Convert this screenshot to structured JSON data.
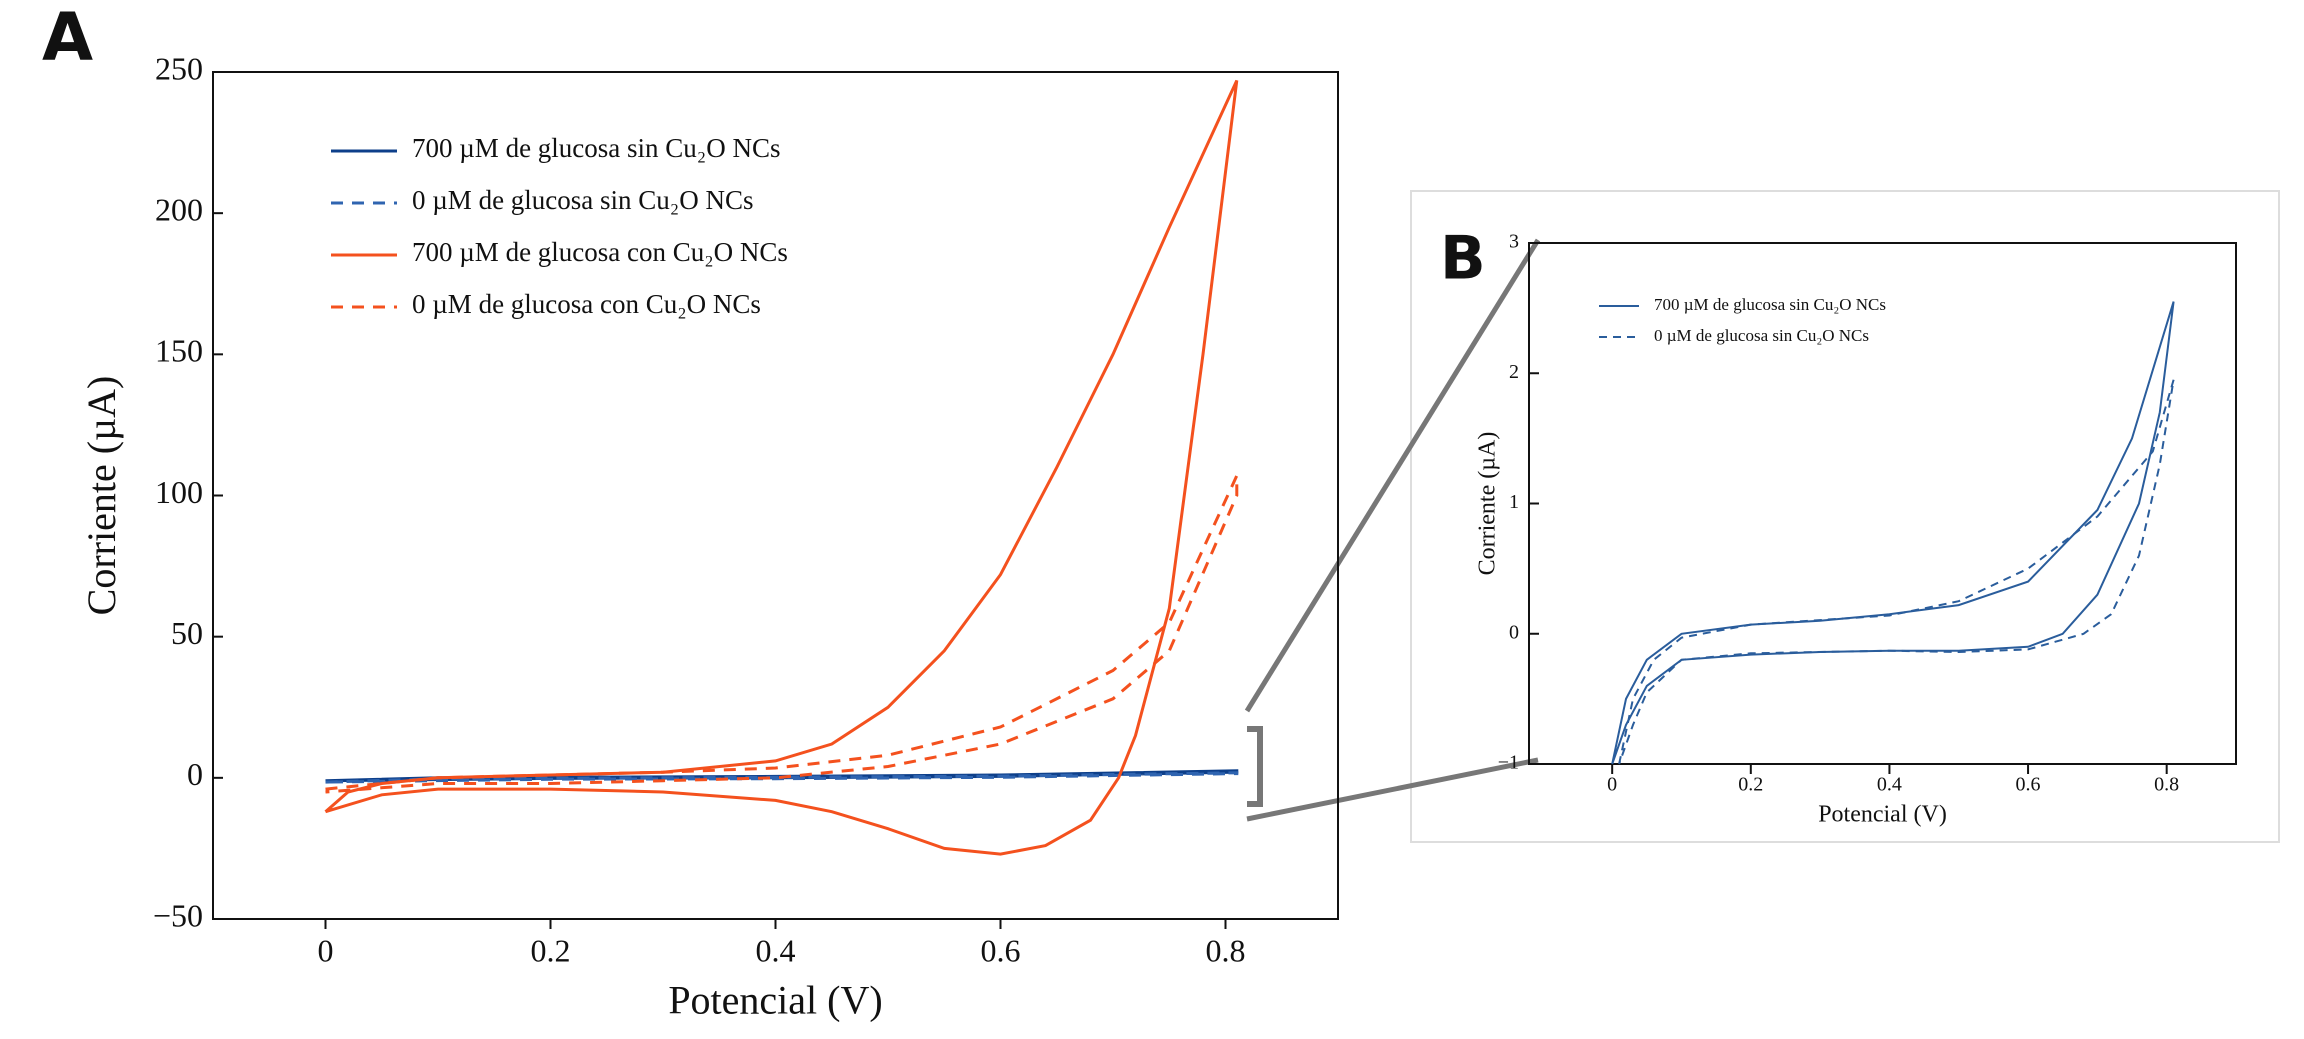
{
  "chart_data": [
    {
      "type": "line",
      "panel": "A",
      "xlabel": "Potencial (V)",
      "ylabel": "Corriente (µA)",
      "xlim": [
        -0.1,
        0.9
      ],
      "xticks": [
        0,
        0.2,
        0.4,
        0.6,
        0.8
      ],
      "ylim": [
        -50,
        250
      ],
      "yticks": [
        {
          "value": -50,
          "label": "−50"
        },
        0,
        50,
        100,
        150,
        200,
        250
      ],
      "legend": "upper left",
      "series": [
        {
          "name": "700 µM de glucosa sin Cu₂O NCs",
          "color": "#0d3f8a",
          "linestyle": "solid",
          "x": [
            0,
            0.1,
            0.4,
            0.6,
            0.81,
            0.81,
            0.6,
            0.4,
            0.2,
            0
          ],
          "values": [
            -1,
            0,
            0.5,
            1,
            2.5,
            2,
            0.5,
            0,
            -0.2,
            -1
          ]
        },
        {
          "name": "0 µM de glucosa sin Cu₂O NCs",
          "color": "#2f64b0",
          "linestyle": "dashed",
          "x": [
            0,
            0.1,
            0.4,
            0.6,
            0.81,
            0.81,
            0.6,
            0.4,
            0.2,
            0
          ],
          "values": [
            -1.5,
            -0.3,
            0.2,
            0.6,
            1.8,
            1.5,
            0.2,
            -0.3,
            -0.5,
            -1.5
          ]
        },
        {
          "name": "700 µM de glucosa con Cu₂O NCs",
          "color": "#f4511e",
          "linestyle": "solid",
          "x": [
            0,
            0.02,
            0.05,
            0.1,
            0.2,
            0.3,
            0.4,
            0.45,
            0.5,
            0.55,
            0.6,
            0.65,
            0.7,
            0.75,
            0.81,
            0.78,
            0.75,
            0.72,
            0.705,
            0.68,
            0.64,
            0.6,
            0.55,
            0.5,
            0.45,
            0.4,
            0.3,
            0.2,
            0.1,
            0.05,
            0
          ],
          "values": [
            -12,
            -5,
            -2,
            0,
            1,
            2,
            6,
            12,
            25,
            45,
            72,
            110,
            150,
            195,
            247,
            150,
            60,
            15,
            0,
            -15,
            -24,
            -27,
            -25,
            -18,
            -12,
            -8,
            -5,
            -4,
            -4,
            -6,
            -12
          ]
        },
        {
          "name": "0 µM de glucosa con Cu₂O NCs",
          "color": "#f4511e",
          "linestyle": "dashed",
          "x": [
            0,
            0.1,
            0.2,
            0.3,
            0.4,
            0.5,
            0.6,
            0.7,
            0.75,
            0.81,
            0.81,
            0.75,
            0.7,
            0.6,
            0.5,
            0.4,
            0.3,
            0.2,
            0.1,
            0
          ],
          "values": [
            -4,
            0,
            1,
            2,
            3.5,
            8,
            18,
            38,
            55,
            107,
            100,
            45,
            28,
            12,
            4,
            0,
            -1,
            -2,
            -2,
            -5
          ]
        }
      ]
    },
    {
      "type": "line",
      "panel": "B",
      "xlabel": "Potencial (V)",
      "ylabel": "Corriente (µA)",
      "xlim": [
        -0.12,
        0.9
      ],
      "xticks": [
        0,
        0.2,
        0.4,
        0.6,
        0.8
      ],
      "ylim": [
        -1,
        3
      ],
      "yticks": [
        {
          "value": -1,
          "label": "−1"
        },
        0,
        1,
        2,
        3
      ],
      "legend": "upper left",
      "series": [
        {
          "name": "700 µM de glucosa sin Cu₂O NCs",
          "color": "#2a5d9c",
          "linestyle": "solid",
          "x": [
            0,
            0.02,
            0.05,
            0.1,
            0.2,
            0.3,
            0.4,
            0.5,
            0.6,
            0.7,
            0.75,
            0.81,
            0.79,
            0.76,
            0.7,
            0.65,
            0.6,
            0.5,
            0.4,
            0.3,
            0.2,
            0.1,
            0.05,
            0.02,
            0
          ],
          "values": [
            -1,
            -0.5,
            -0.2,
            0,
            0.07,
            0.1,
            0.15,
            0.22,
            0.4,
            0.95,
            1.5,
            2.55,
            1.7,
            1,
            0.3,
            0,
            -0.1,
            -0.13,
            -0.13,
            -0.14,
            -0.16,
            -0.2,
            -0.4,
            -0.7,
            -1
          ]
        },
        {
          "name": "0 µM de glucosa sin Cu₂O NCs",
          "color": "#2a5d9c",
          "linestyle": "dashed",
          "x": [
            0.01,
            0.03,
            0.06,
            0.1,
            0.2,
            0.4,
            0.5,
            0.6,
            0.7,
            0.78,
            0.81,
            0.79,
            0.76,
            0.72,
            0.68,
            0.6,
            0.5,
            0.4,
            0.2,
            0.1,
            0.05,
            0.03,
            0.01
          ],
          "values": [
            -1,
            -0.5,
            -0.2,
            -0.03,
            0.07,
            0.14,
            0.25,
            0.5,
            0.9,
            1.4,
            1.95,
            1.3,
            0.6,
            0.15,
            0,
            -0.12,
            -0.14,
            -0.13,
            -0.15,
            -0.2,
            -0.45,
            -0.7,
            -1
          ]
        }
      ]
    }
  ]
}
